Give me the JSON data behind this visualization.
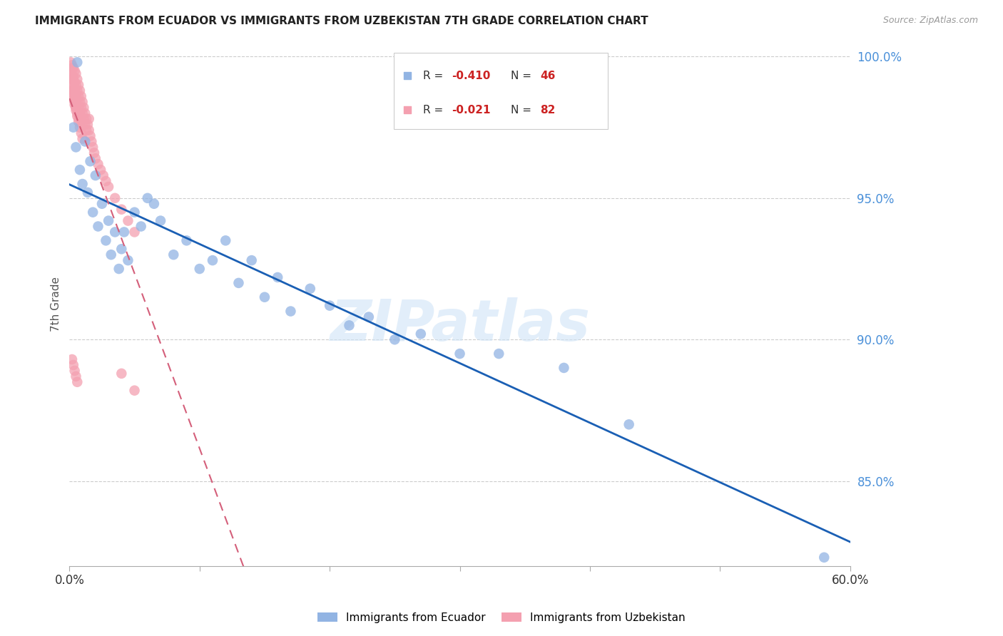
{
  "title": "IMMIGRANTS FROM ECUADOR VS IMMIGRANTS FROM UZBEKISTAN 7TH GRADE CORRELATION CHART",
  "source": "Source: ZipAtlas.com",
  "ylabel": "7th Grade",
  "xlim": [
    0.0,
    0.6
  ],
  "ylim": [
    0.82,
    1.005
  ],
  "yticks": [
    0.85,
    0.9,
    0.95,
    1.0
  ],
  "ytick_labels": [
    "85.0%",
    "90.0%",
    "95.0%",
    "100.0%"
  ],
  "ecuador_color": "#92b4e3",
  "uzbekistan_color": "#f4a0b0",
  "ecuador_line_color": "#1a5fb4",
  "uzbekistan_line_color": "#d45f7a",
  "background_color": "#ffffff",
  "watermark": "ZIPatlas",
  "ecuador_r": "-0.410",
  "ecuador_n": "46",
  "uzbekistan_r": "-0.021",
  "uzbekistan_n": "82",
  "ecuador_x": [
    0.003,
    0.005,
    0.006,
    0.008,
    0.01,
    0.012,
    0.014,
    0.016,
    0.018,
    0.02,
    0.022,
    0.025,
    0.028,
    0.03,
    0.032,
    0.035,
    0.038,
    0.04,
    0.042,
    0.045,
    0.05,
    0.055,
    0.06,
    0.065,
    0.07,
    0.08,
    0.09,
    0.1,
    0.11,
    0.12,
    0.13,
    0.14,
    0.15,
    0.16,
    0.17,
    0.185,
    0.2,
    0.215,
    0.23,
    0.25,
    0.27,
    0.3,
    0.33,
    0.38,
    0.43,
    0.58
  ],
  "ecuador_y": [
    0.975,
    0.968,
    0.998,
    0.96,
    0.955,
    0.97,
    0.952,
    0.963,
    0.945,
    0.958,
    0.94,
    0.948,
    0.935,
    0.942,
    0.93,
    0.938,
    0.925,
    0.932,
    0.938,
    0.928,
    0.945,
    0.94,
    0.95,
    0.948,
    0.942,
    0.93,
    0.935,
    0.925,
    0.928,
    0.935,
    0.92,
    0.928,
    0.915,
    0.922,
    0.91,
    0.918,
    0.912,
    0.905,
    0.908,
    0.9,
    0.902,
    0.895,
    0.895,
    0.89,
    0.87,
    0.823
  ],
  "uzbekistan_x": [
    0.001,
    0.001,
    0.002,
    0.002,
    0.002,
    0.003,
    0.003,
    0.003,
    0.004,
    0.004,
    0.004,
    0.005,
    0.005,
    0.005,
    0.005,
    0.006,
    0.006,
    0.006,
    0.007,
    0.007,
    0.007,
    0.008,
    0.008,
    0.008,
    0.009,
    0.009,
    0.009,
    0.01,
    0.01,
    0.01,
    0.011,
    0.011,
    0.012,
    0.012,
    0.013,
    0.013,
    0.014,
    0.015,
    0.015,
    0.016,
    0.017,
    0.018,
    0.019,
    0.02,
    0.022,
    0.024,
    0.026,
    0.028,
    0.03,
    0.035,
    0.04,
    0.045,
    0.05,
    0.003,
    0.004,
    0.005,
    0.006,
    0.007,
    0.008,
    0.009,
    0.01,
    0.002,
    0.003,
    0.004,
    0.005,
    0.006,
    0.007,
    0.003,
    0.004,
    0.005,
    0.002,
    0.003,
    0.004,
    0.005,
    0.006,
    0.002,
    0.003,
    0.004,
    0.003,
    0.002,
    0.04,
    0.05
  ],
  "uzbekistan_y": [
    0.998,
    0.995,
    0.997,
    0.993,
    0.99,
    0.996,
    0.992,
    0.988,
    0.995,
    0.991,
    0.987,
    0.994,
    0.99,
    0.986,
    0.982,
    0.992,
    0.988,
    0.984,
    0.99,
    0.986,
    0.982,
    0.988,
    0.984,
    0.98,
    0.986,
    0.982,
    0.978,
    0.984,
    0.98,
    0.976,
    0.982,
    0.978,
    0.98,
    0.976,
    0.978,
    0.974,
    0.976,
    0.978,
    0.974,
    0.972,
    0.97,
    0.968,
    0.966,
    0.964,
    0.962,
    0.96,
    0.958,
    0.956,
    0.954,
    0.95,
    0.946,
    0.942,
    0.938,
    0.985,
    0.983,
    0.981,
    0.979,
    0.977,
    0.975,
    0.973,
    0.971,
    0.988,
    0.986,
    0.984,
    0.982,
    0.98,
    0.978,
    0.987,
    0.985,
    0.983,
    0.893,
    0.891,
    0.889,
    0.887,
    0.885,
    0.992,
    0.99,
    0.988,
    0.993,
    0.996,
    0.888,
    0.882
  ]
}
